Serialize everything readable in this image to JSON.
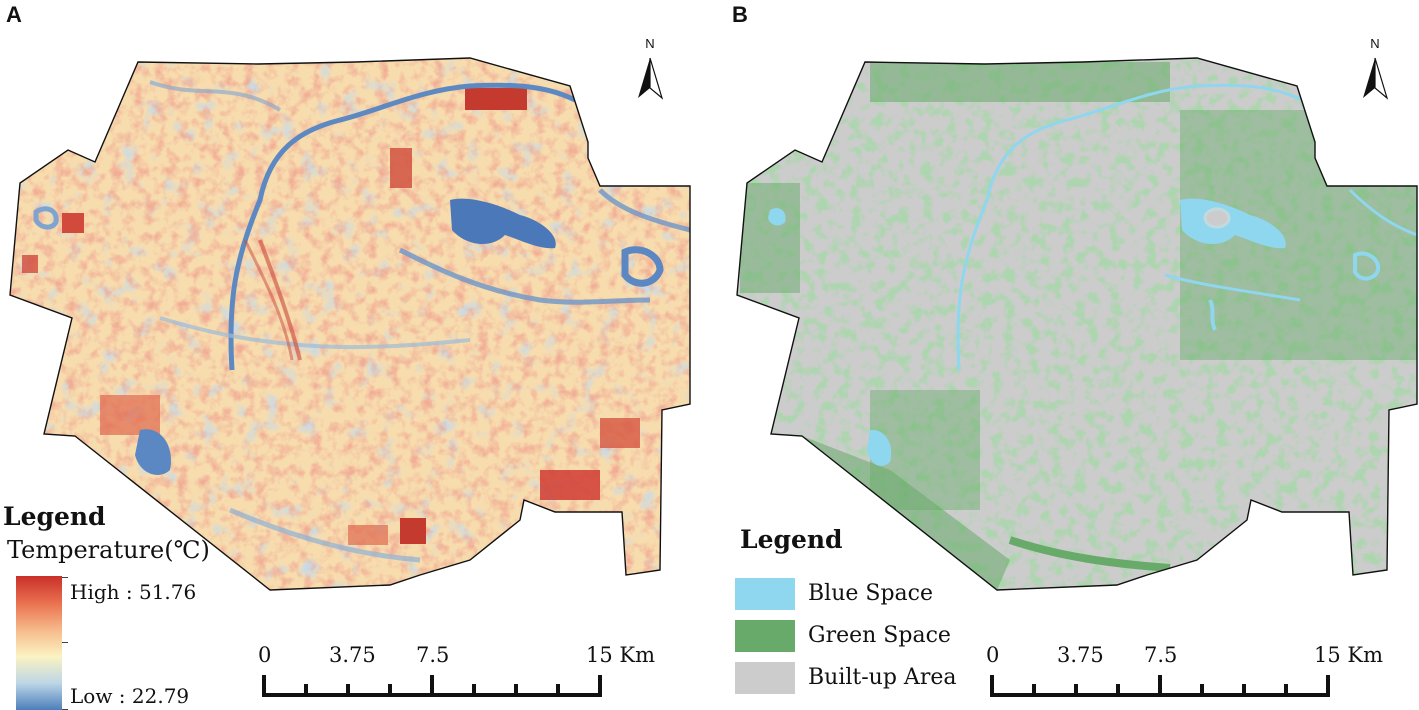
{
  "panel_a": {
    "letter": "A",
    "north_label": "N",
    "legend": {
      "title": "Legend",
      "subtitle": "Temperature(℃)",
      "high_label": "High : 51.76",
      "low_label": "Low : 22.79",
      "ramp_colors": [
        "#c9302a",
        "#e9704f",
        "#f6b98a",
        "#fbf3c2",
        "#bcd6e6",
        "#4d7ebc"
      ]
    },
    "scale_bar": {
      "ticks": [
        "0",
        "3.75",
        "7.5",
        "15 Km"
      ]
    }
  },
  "panel_b": {
    "letter": "B",
    "north_label": "N",
    "legend": {
      "title": "Legend",
      "items": [
        {
          "label": "Blue Space",
          "color": "#8fd6ef"
        },
        {
          "label": "Green Space",
          "color": "#68aa6a"
        },
        {
          "label": "Built-up Area",
          "color": "#cccccc"
        }
      ]
    },
    "scale_bar": {
      "ticks": [
        "0",
        "3.75",
        "7.5",
        "15 Km"
      ]
    }
  }
}
